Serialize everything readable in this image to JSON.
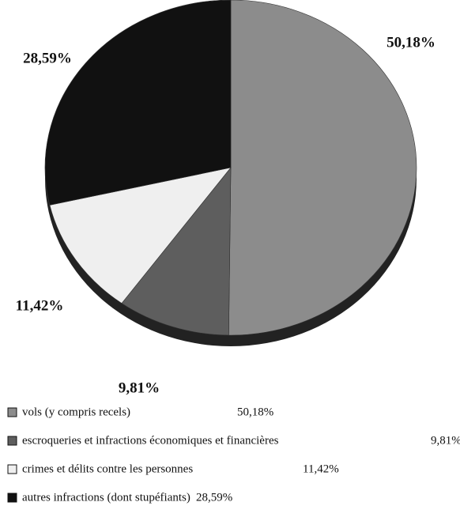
{
  "chart_data": {
    "type": "pie",
    "categories": [
      "vols (y compris recels)",
      "escroqueries et infractions économiques et financières",
      "crimes et délits contre les personnes",
      "autres infractions (dont stupéfiants)"
    ],
    "values": [
      50.18,
      9.81,
      11.42,
      28.59
    ],
    "value_labels": [
      "50,18%",
      "9,81%",
      "11,42%",
      "28,59%"
    ],
    "colors": [
      "#8c8c8c",
      "#5e5e5e",
      "#efefef",
      "#111111"
    ]
  }
}
